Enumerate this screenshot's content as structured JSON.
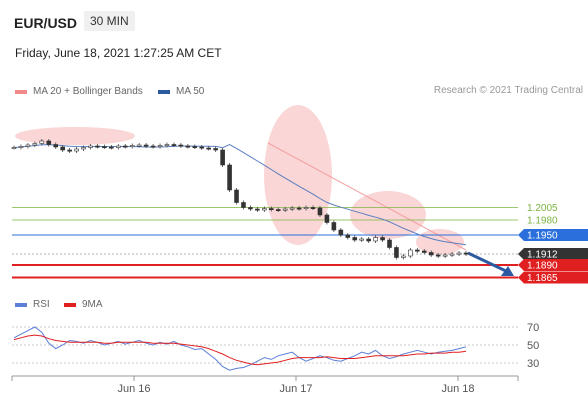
{
  "header": {
    "pair": "EUR/USD",
    "timeframe": "30 MIN",
    "datetime": "Friday, June 18, 2021 1:27:25 AM CET"
  },
  "legend_top": {
    "items": [
      {
        "label": "MA 20 + Bollinger Bands",
        "color": "#f08a8a"
      },
      {
        "label": "MA 50",
        "color": "#2c5aa0"
      }
    ],
    "credit": "Research © 2021 Trading Central"
  },
  "legend_bottom": {
    "items": [
      {
        "label": "RSI",
        "color": "#5b7fd6"
      },
      {
        "label": "9MA",
        "color": "#e02020"
      }
    ]
  },
  "colors": {
    "resistance": "#7cb342",
    "pivot": "#2a6fdb",
    "support": "#e02020",
    "current": "#333333",
    "arrow": "#2c5aa0",
    "ma20_band": "#f8c8c8"
  },
  "chart_data": [
    {
      "type": "line",
      "name": "price",
      "x": [
        "Jun 16",
        "Jun 17",
        "Jun 18"
      ],
      "ylim": [
        1.184,
        1.222
      ],
      "closes": [
        1.2125,
        1.2127,
        1.213,
        1.2133,
        1.2138,
        1.2131,
        1.2126,
        1.212,
        1.2118,
        1.2122,
        1.2125,
        1.2128,
        1.2127,
        1.2126,
        1.2125,
        1.2128,
        1.2127,
        1.2129,
        1.213,
        1.2128,
        1.2127,
        1.2129,
        1.2131,
        1.213,
        1.2128,
        1.2127,
        1.2126,
        1.2124,
        1.2123,
        1.212,
        1.209,
        1.204,
        1.2015,
        1.2005,
        1.2002,
        1.2,
        1.2003,
        1.2001,
        1.2,
        1.2002,
        1.2004,
        1.2003,
        1.2005,
        1.2004,
        1.199,
        1.1975,
        1.196,
        1.195,
        1.1945,
        1.194,
        1.1942,
        1.1938,
        1.1945,
        1.194,
        1.1925,
        1.1905,
        1.1908,
        1.192,
        1.1918,
        1.1915,
        1.191,
        1.1908,
        1.191,
        1.1912,
        1.1914,
        1.1912
      ],
      "levels": [
        {
          "label": "1.2005",
          "value": 1.2005,
          "kind": "resistance"
        },
        {
          "label": "1.1980",
          "value": 1.198,
          "kind": "resistance"
        },
        {
          "label": "1.1950",
          "value": 1.195,
          "kind": "pivot"
        },
        {
          "label": "1.1912",
          "value": 1.1912,
          "kind": "current"
        },
        {
          "label": "1.1890",
          "value": 1.189,
          "kind": "support"
        },
        {
          "label": "1.1865",
          "value": 1.1865,
          "kind": "support"
        }
      ]
    },
    {
      "type": "line",
      "name": "RSI",
      "ylim": [
        20,
        80
      ],
      "yticks": [
        "70",
        "50",
        "30"
      ],
      "ytick_values": [
        70,
        50,
        30
      ],
      "series": [
        {
          "name": "RSI",
          "values": [
            58,
            62,
            66,
            70,
            64,
            52,
            46,
            50,
            55,
            54,
            52,
            55,
            53,
            50,
            52,
            54,
            51,
            53,
            55,
            52,
            50,
            53,
            51,
            54,
            50,
            48,
            45,
            46,
            40,
            34,
            26,
            22,
            24,
            25,
            28,
            32,
            36,
            34,
            38,
            40,
            42,
            36,
            32,
            35,
            38,
            36,
            33,
            32,
            35,
            38,
            42,
            40,
            44,
            38,
            35,
            37,
            40,
            42,
            44,
            42,
            40,
            42,
            43,
            44,
            46,
            48
          ]
        },
        {
          "name": "9MA",
          "values": [
            56,
            58,
            60,
            61,
            60,
            57,
            55,
            54,
            53,
            53,
            53,
            53,
            53,
            52,
            52,
            53,
            53,
            53,
            53,
            53,
            52,
            52,
            52,
            52,
            51,
            50,
            49,
            48,
            46,
            43,
            40,
            36,
            33,
            31,
            29,
            28,
            29,
            30,
            31,
            33,
            35,
            36,
            36,
            36,
            36,
            37,
            36,
            35,
            35,
            35,
            36,
            37,
            38,
            38,
            38,
            38,
            38,
            39,
            40,
            40,
            41,
            41,
            41,
            42,
            42,
            43
          ]
        }
      ]
    }
  ]
}
